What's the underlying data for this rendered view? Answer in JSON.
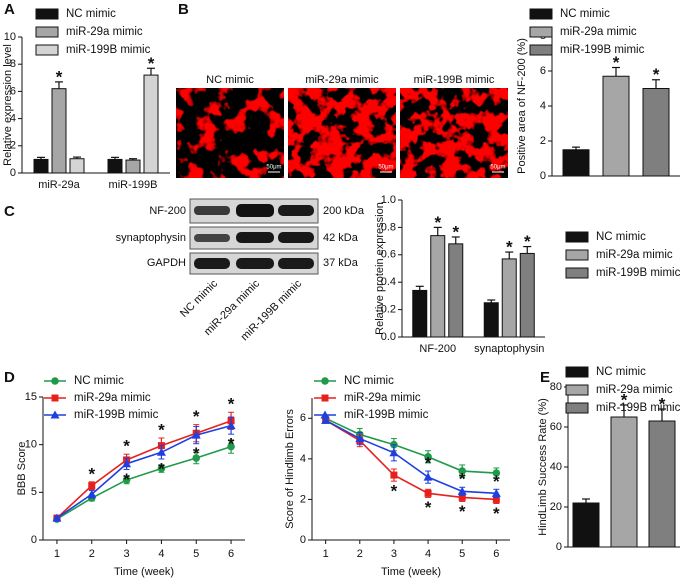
{
  "panel_labels": [
    "A",
    "B",
    "C",
    "D",
    "E"
  ],
  "images": {
    "labels": [
      "NC mimic",
      "miR-29a mimic",
      "miR-199B mimic"
    ],
    "scale_bar": "50μm"
  },
  "blot": {
    "proteins": [
      "NF-200",
      "synaptophysin",
      "GAPDH"
    ],
    "sizes": [
      "200 kDa",
      "42 kDa",
      "37 kDa"
    ],
    "lanes": [
      "NC mimic",
      "miR-29a mimic",
      "miR-199B mimic"
    ]
  },
  "chart_data": [
    {
      "type": "bar",
      "ylabel": "Relative expression level",
      "categories": [
        "miR-29a",
        "miR-199B"
      ],
      "ylim": [
        0,
        10
      ],
      "yticks": [
        0,
        2,
        4,
        6,
        8,
        10
      ],
      "legend": true,
      "significance_mark": "*",
      "series": [
        {
          "name": "NC mimic",
          "color": "#111111",
          "values": [
            1.0,
            1.0
          ],
          "errors": [
            0.15,
            0.15
          ],
          "significant": [
            false,
            false
          ]
        },
        {
          "name": "miR-29a mimic",
          "color": "#a6a6a6",
          "values": [
            6.2,
            0.95
          ],
          "errors": [
            0.5,
            0.1
          ],
          "significant": [
            true,
            false
          ]
        },
        {
          "name": "miR-199B mimic",
          "color": "#d4d4d4",
          "values": [
            1.05,
            7.2
          ],
          "errors": [
            0.12,
            0.5
          ],
          "significant": [
            false,
            true
          ]
        }
      ]
    },
    {
      "type": "bar",
      "ylabel": "Positive area of NF-200 (%)",
      "categories": [
        null
      ],
      "ylim": [
        0,
        8
      ],
      "yticks": [
        0,
        2,
        4,
        6,
        8
      ],
      "legend": true,
      "significance_mark": "*",
      "series": [
        {
          "name": "NC mimic",
          "color": "#111111",
          "values": [
            1.5
          ],
          "errors": [
            0.15
          ],
          "significant": [
            false
          ]
        },
        {
          "name": "miR-29a mimic",
          "color": "#a6a6a6",
          "values": [
            5.7
          ],
          "errors": [
            0.5
          ],
          "significant": [
            true
          ]
        },
        {
          "name": "miR-199B mimic",
          "color": "#7f7f7f",
          "values": [
            5.0
          ],
          "errors": [
            0.5
          ],
          "significant": [
            true
          ]
        }
      ]
    },
    {
      "type": "bar",
      "ylabel": "Relative protein expression",
      "categories": [
        "NF-200",
        "synaptophysin"
      ],
      "ylim": [
        0,
        1
      ],
      "yticks": [
        {
          "value": 0,
          "label": "0.0"
        },
        0.2,
        0.4,
        0.6,
        0.8,
        {
          "value": 1,
          "label": "1.0"
        }
      ],
      "legend": true,
      "significance_mark": "*",
      "series": [
        {
          "name": "NC mimic",
          "color": "#111111",
          "values": [
            0.34,
            0.25
          ],
          "errors": [
            0.03,
            0.02
          ],
          "significant": [
            false,
            false
          ]
        },
        {
          "name": "miR-29a mimic",
          "color": "#a6a6a6",
          "values": [
            0.74,
            0.57
          ],
          "errors": [
            0.06,
            0.05
          ],
          "significant": [
            true,
            true
          ]
        },
        {
          "name": "miR-199B mimic",
          "color": "#7f7f7f",
          "values": [
            0.68,
            0.61
          ],
          "errors": [
            0.05,
            0.05
          ],
          "significant": [
            true,
            true
          ]
        }
      ]
    },
    {
      "type": "line",
      "ylabel": "BBB Score",
      "xlabel": "Time (week)",
      "x": [
        1,
        2,
        3,
        4,
        5,
        6
      ],
      "xlim": [
        0.6,
        6.4
      ],
      "xticks": [
        1,
        2,
        3,
        4,
        5,
        6
      ],
      "ylim": [
        0,
        15
      ],
      "yticks": [
        0,
        5,
        10,
        15
      ],
      "legend": true,
      "significance_mark": "*",
      "series": [
        {
          "name": "NC mimic",
          "color": "#1f9a4a",
          "marker": "circle",
          "values": [
            2.2,
            4.4,
            6.3,
            7.5,
            8.6,
            9.8
          ],
          "errors": [
            0.2,
            0.3,
            0.4,
            0.4,
            0.6,
            0.7
          ],
          "significant": [
            false,
            false,
            false,
            false,
            false,
            false
          ]
        },
        {
          "name": "miR-29a mimic",
          "color": "#e8201c",
          "marker": "square",
          "values": [
            2.3,
            5.7,
            8.4,
            9.9,
            11.2,
            12.5
          ],
          "errors": [
            0.2,
            0.4,
            0.6,
            0.8,
            0.9,
            0.9
          ],
          "significant": [
            false,
            true,
            true,
            true,
            true,
            true
          ]
        },
        {
          "name": "miR-199B mimic",
          "color": "#1f3fe0",
          "marker": "triangle",
          "values": [
            2.3,
            4.8,
            8.0,
            9.2,
            11.0,
            12.0
          ],
          "errors": [
            0.2,
            0.4,
            0.6,
            0.7,
            0.9,
            0.9
          ],
          "significant": [
            false,
            false,
            true,
            true,
            true,
            true
          ]
        }
      ]
    },
    {
      "type": "line",
      "ylabel": "Score of Hindlimb Errors",
      "xlabel": "Time (week)",
      "x": [
        1,
        2,
        3,
        4,
        5,
        6
      ],
      "xlim": [
        0.6,
        6.4
      ],
      "xticks": [
        1,
        2,
        3,
        4,
        5,
        6
      ],
      "ylim": [
        0,
        7
      ],
      "yticks": [
        0,
        2,
        4,
        6
      ],
      "legend": true,
      "significance_mark": "*",
      "series": [
        {
          "name": "NC mimic",
          "color": "#1f9a4a",
          "marker": "circle",
          "values": [
            6.0,
            5.2,
            4.7,
            4.1,
            3.4,
            3.3
          ],
          "errors": [
            0.1,
            0.3,
            0.3,
            0.3,
            0.3,
            0.25
          ],
          "significant": [
            false,
            false,
            false,
            false,
            false,
            false
          ]
        },
        {
          "name": "miR-29a mimic",
          "color": "#e8201c",
          "marker": "square",
          "values": [
            5.9,
            4.9,
            3.2,
            2.3,
            2.1,
            2.0
          ],
          "errors": [
            0.1,
            0.3,
            0.3,
            0.2,
            0.2,
            0.2
          ],
          "significant": [
            false,
            false,
            true,
            true,
            true,
            true
          ]
        },
        {
          "name": "miR-199B mimic",
          "color": "#1f3fe0",
          "marker": "triangle",
          "values": [
            5.9,
            5.0,
            4.3,
            3.1,
            2.4,
            2.3
          ],
          "errors": [
            0.1,
            0.3,
            0.4,
            0.3,
            0.2,
            0.2
          ],
          "significant": [
            false,
            false,
            false,
            true,
            true,
            true
          ]
        }
      ]
    },
    {
      "type": "bar",
      "ylabel": "HindLimb Success Rate (%)",
      "categories": [
        null
      ],
      "ylim": [
        0,
        80
      ],
      "yticks": [
        0,
        20,
        40,
        60,
        80
      ],
      "legend": true,
      "significance_mark": "*",
      "series": [
        {
          "name": "NC mimic",
          "color": "#111111",
          "values": [
            22
          ],
          "errors": [
            2
          ],
          "significant": [
            false
          ]
        },
        {
          "name": "miR-29a mimic",
          "color": "#a6a6a6",
          "values": [
            65
          ],
          "errors": [
            6
          ],
          "significant": [
            true
          ]
        },
        {
          "name": "miR-199B mimic",
          "color": "#7f7f7f",
          "values": [
            63
          ],
          "errors": [
            6
          ],
          "significant": [
            true
          ]
        }
      ]
    }
  ]
}
